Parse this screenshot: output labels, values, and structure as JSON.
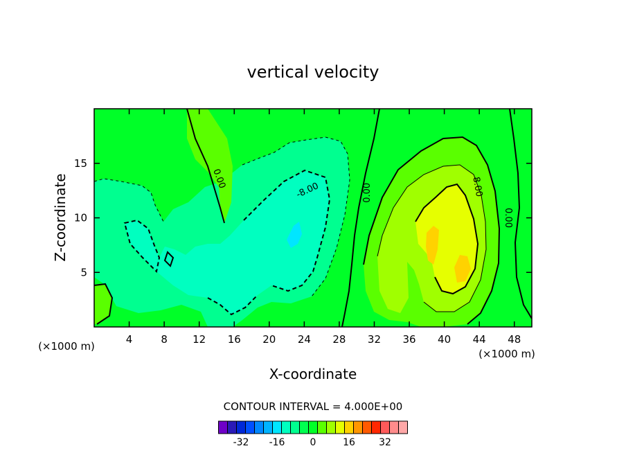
{
  "chart_data": {
    "type": "heatmap",
    "title": "vertical velocity",
    "xlabel": "X-coordinate",
    "ylabel": "Z-coordinate",
    "x_unit": "(×1000 m)",
    "y_unit": "(×1000 m)",
    "xlim": [
      0,
      50
    ],
    "ylim": [
      0,
      20
    ],
    "x_ticks": [
      4,
      8,
      12,
      16,
      20,
      24,
      28,
      32,
      36,
      40,
      44,
      48
    ],
    "y_ticks": [
      5,
      10,
      15
    ],
    "contour_interval_label": "CONTOUR INTERVAL = 4.000E+00",
    "contour_labels": [
      {
        "text": "0.00",
        "x": 14.0,
        "z": 13.5,
        "rotate": 70
      },
      {
        "text": "-8.00",
        "x": 24.5,
        "z": 12.3,
        "rotate": -25
      },
      {
        "text": "0.00",
        "x": 31.5,
        "z": 12.3,
        "rotate": -90
      },
      {
        "text": "8.00",
        "x": 43.5,
        "z": 12.8,
        "rotate": 80
      },
      {
        "text": "0.00",
        "x": 47.0,
        "z": 10.0,
        "rotate": 90
      }
    ],
    "colorbar": {
      "ticks": [
        -32,
        -16,
        0,
        16,
        32
      ],
      "tick_labels": [
        "-32",
        "-16",
        "0",
        "16",
        "32"
      ],
      "colors": [
        "#6f00c8",
        "#2a1ab8",
        "#0028d8",
        "#0050ff",
        "#0088ff",
        "#00b4ff",
        "#00e6ff",
        "#00ffc0",
        "#00ff90",
        "#00ff50",
        "#00ff28",
        "#5aff00",
        "#a0ff00",
        "#e6ff00",
        "#ffd200",
        "#ff9600",
        "#ff5a00",
        "#ff2800",
        "#ff5a5a",
        "#ff8c8c",
        "#ffa8a8"
      ]
    },
    "field_colors": {
      "background": "#00ff28",
      "neg4": "#00ff90",
      "neg8": "#00ffc0",
      "neg12": "#00e6ff",
      "pos4": "#5aff00",
      "pos8": "#a0ff00",
      "pos12": "#e6ff00",
      "pos16": "#ffd200",
      "pos20": "#ff9600"
    }
  }
}
